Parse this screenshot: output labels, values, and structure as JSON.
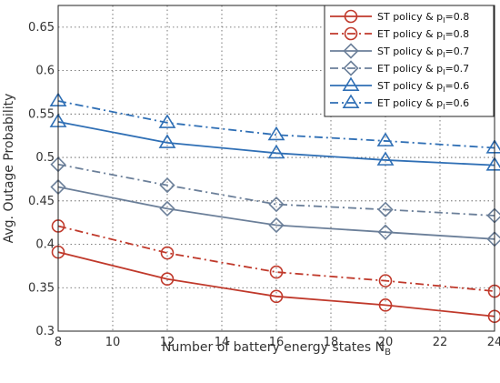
{
  "chart_data": {
    "type": "line",
    "xlabel": "Number of battery energy states N",
    "xlabel_sub": "B",
    "ylabel": "Avg. Outage Probability",
    "x": [
      8,
      12,
      16,
      20,
      24
    ],
    "xlim": [
      8,
      24
    ],
    "ylim": [
      0.3,
      0.675
    ],
    "xticks": [
      8,
      10,
      12,
      14,
      16,
      18,
      20,
      22,
      24
    ],
    "yticks": [
      "0.3",
      "0.35",
      "0.4",
      "0.45",
      "0.5",
      "0.55",
      "0.6",
      "0.65"
    ],
    "grid": true,
    "legend_position": "top-right",
    "series": [
      {
        "name": "ST policy & p",
        "name_sub": "I",
        "name_suffix": "=0.8",
        "values": [
          0.391,
          0.36,
          0.34,
          0.33,
          0.317
        ],
        "color": "#c0392b",
        "dash": "solid",
        "marker": "circle"
      },
      {
        "name": "ET policy & p",
        "name_sub": "I",
        "name_suffix": "=0.8",
        "values": [
          0.421,
          0.39,
          0.368,
          0.358,
          0.346
        ],
        "color": "#c0392b",
        "dash": "dashdot",
        "marker": "circle"
      },
      {
        "name": "ST policy & p",
        "name_sub": "I",
        "name_suffix": "=0.7",
        "values": [
          0.466,
          0.441,
          0.422,
          0.414,
          0.406
        ],
        "color": "#6b7f99",
        "dash": "solid",
        "marker": "diamond"
      },
      {
        "name": "ET policy & p",
        "name_sub": "I",
        "name_suffix": "=0.7",
        "values": [
          0.492,
          0.468,
          0.446,
          0.44,
          0.433
        ],
        "color": "#6b7f99",
        "dash": "dashdot",
        "marker": "diamond"
      },
      {
        "name": "ST policy & p",
        "name_sub": "I",
        "name_suffix": "=0.6",
        "values": [
          0.541,
          0.517,
          0.505,
          0.497,
          0.491
        ],
        "color": "#2f6fb5",
        "dash": "solid",
        "marker": "triangle"
      },
      {
        "name": "ET policy & p",
        "name_sub": "I",
        "name_suffix": "=0.6",
        "values": [
          0.565,
          0.54,
          0.526,
          0.519,
          0.511
        ],
        "color": "#2f6fb5",
        "dash": "dashdot",
        "marker": "triangle"
      }
    ]
  }
}
